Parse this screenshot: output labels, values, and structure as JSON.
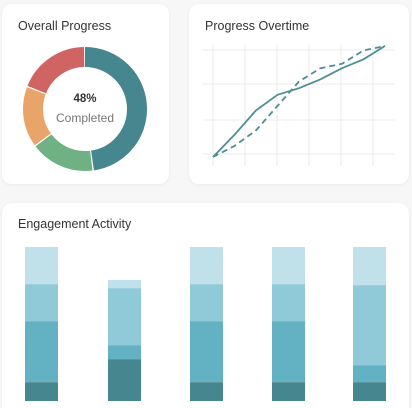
{
  "overall_progress": {
    "title": "Overall Progress",
    "percent_text": "48%",
    "status_text": "Completed",
    "segments": [
      {
        "name": "teal",
        "color": "#46868e",
        "value": 48
      },
      {
        "name": "green",
        "color": "#6fb183",
        "value": 17
      },
      {
        "name": "orange",
        "color": "#e9a46a",
        "value": 16
      },
      {
        "name": "red",
        "color": "#cf6462",
        "value": 19
      }
    ]
  },
  "progress_overtime": {
    "title": "Progress Overtime",
    "colors": {
      "line": "#4f8e97",
      "grid": "#ebebeb"
    },
    "chart_data": {
      "type": "line",
      "x": [
        0,
        1,
        2,
        3,
        4,
        5,
        6,
        7,
        8
      ],
      "ylim": [
        0,
        100
      ],
      "series": [
        {
          "style": "solid",
          "values": [
            0,
            20,
            42,
            56,
            62,
            70,
            80,
            88,
            100
          ]
        },
        {
          "style": "dashed",
          "values": [
            0,
            10,
            24,
            46,
            68,
            80,
            84,
            96,
            100
          ]
        }
      ]
    }
  },
  "engagement_activity": {
    "title": "Engagement Activity",
    "colors": [
      "#46878f",
      "#62b2c4",
      "#90cad8",
      "#c0e1ea"
    ],
    "chart_data": {
      "type": "bar",
      "stacked": true,
      "categories": [
        "1",
        "2",
        "3",
        "4",
        "5"
      ],
      "series": [
        {
          "values": [
            19,
            42,
            19,
            19,
            19
          ]
        },
        {
          "values": [
            61,
            14,
            61,
            61,
            17
          ]
        },
        {
          "values": [
            37,
            57,
            37,
            37,
            80
          ]
        },
        {
          "values": [
            37,
            8,
            37,
            37,
            38
          ]
        }
      ]
    }
  }
}
